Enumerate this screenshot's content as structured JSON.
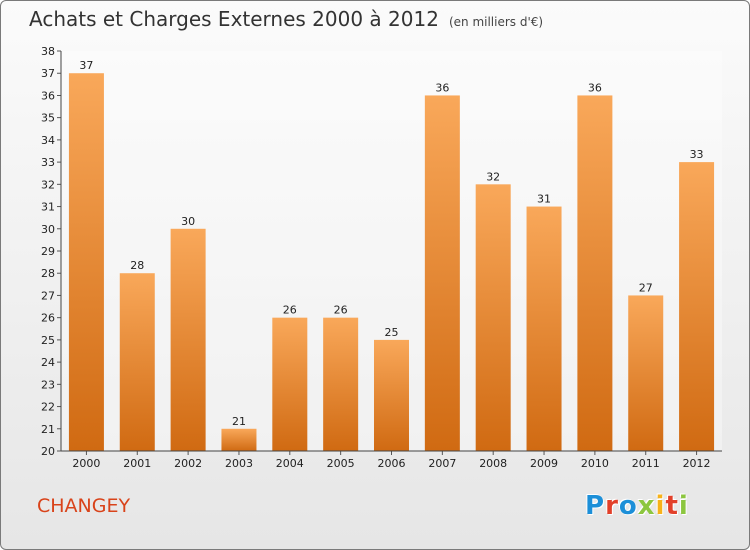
{
  "title": "Achats et Charges Externes 2000 à 2012",
  "subtitle": "(en milliers d'€)",
  "commune": "CHANGEY",
  "logo_text": "Proxiti",
  "colors": {
    "bar_light": "#f9a85a",
    "bar_dark": "#d06a12",
    "commune_text": "#d9431a",
    "logo": [
      "#1c8fd8",
      "#e2402a",
      "#1c8fd8",
      "#8cc63f",
      "#f7b21a",
      "#e2402a",
      "#8cc63f"
    ]
  },
  "chart_data": {
    "type": "bar",
    "title": "Achats et Charges Externes 2000 à 2012",
    "subtitle": "(en milliers d'€)",
    "categories": [
      "2000",
      "2001",
      "2002",
      "2003",
      "2004",
      "2005",
      "2006",
      "2007",
      "2008",
      "2009",
      "2010",
      "2011",
      "2012"
    ],
    "values": [
      37,
      28,
      30,
      21,
      26,
      26,
      25,
      36,
      32,
      31,
      36,
      27,
      33
    ],
    "ylim": [
      20,
      38
    ],
    "yticks": [
      20,
      21,
      22,
      23,
      24,
      25,
      26,
      27,
      28,
      29,
      30,
      31,
      32,
      33,
      34,
      35,
      36,
      37,
      38
    ],
    "grid": false,
    "legend": "none"
  }
}
